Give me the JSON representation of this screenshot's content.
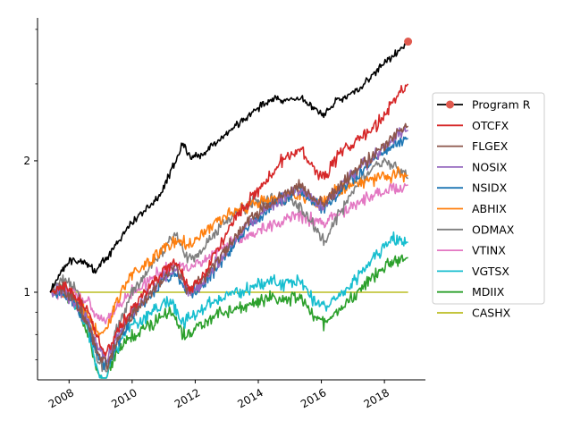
{
  "chart_data": {
    "type": "line",
    "title": "",
    "xlabel": "",
    "ylabel": "",
    "y_scale": "log",
    "xlim": [
      2007.0,
      2019.3
    ],
    "ylim": [
      0.63,
      4.25
    ],
    "grid": false,
    "legend_position": "right",
    "y_major_ticks": [
      1,
      2
    ],
    "y_major_tick_labels": [
      "1",
      "2"
    ],
    "y_minor_ticks": [
      0.7,
      0.8,
      0.9,
      3,
      4
    ],
    "x_ticks": [
      2008,
      2010,
      2012,
      2014,
      2016,
      2018
    ],
    "x_tick_labels": [
      "2008",
      "2010",
      "2012",
      "2014",
      "2016",
      "2018"
    ],
    "series": [
      {
        "name": "Program R",
        "color": "#000000",
        "marker": "circle",
        "marker_color": "#e05a4f",
        "x": [
          2007.4,
          2007.7,
          2008.0,
          2008.5,
          2008.8,
          2009.2,
          2009.6,
          2010.0,
          2010.4,
          2010.8,
          2011.2,
          2011.6,
          2011.9,
          2012.3,
          2012.8,
          2013.2,
          2013.6,
          2014.0,
          2014.5,
          2014.9,
          2015.3,
          2015.6,
          2015.9,
          2016.1,
          2016.4,
          2016.8,
          2017.2,
          2017.6,
          2018.0,
          2018.4,
          2018.75
        ],
        "y": [
          1.0,
          1.1,
          1.18,
          1.17,
          1.12,
          1.2,
          1.33,
          1.45,
          1.55,
          1.62,
          1.87,
          2.18,
          2.02,
          2.1,
          2.25,
          2.38,
          2.5,
          2.65,
          2.78,
          2.76,
          2.78,
          2.72,
          2.6,
          2.55,
          2.72,
          2.82,
          2.9,
          3.15,
          3.35,
          3.55,
          3.75
        ]
      },
      {
        "name": "OTCFX",
        "color": "#d62728",
        "x": [
          2007.4,
          2007.8,
          2008.2,
          2008.6,
          2008.9,
          2009.2,
          2009.5,
          2010.0,
          2010.5,
          2011.0,
          2011.4,
          2011.8,
          2012.2,
          2012.7,
          2013.2,
          2013.7,
          2014.2,
          2014.6,
          2015.0,
          2015.4,
          2015.8,
          2016.1,
          2016.4,
          2016.8,
          2017.2,
          2017.6,
          2018.0,
          2018.4,
          2018.75
        ],
        "y": [
          1.0,
          1.04,
          0.98,
          0.92,
          0.78,
          0.72,
          0.8,
          0.92,
          1.02,
          1.12,
          1.18,
          1.02,
          1.08,
          1.25,
          1.45,
          1.62,
          1.78,
          1.95,
          2.05,
          2.1,
          1.9,
          1.82,
          2.0,
          2.15,
          2.25,
          2.35,
          2.55,
          2.8,
          3.0
        ]
      },
      {
        "name": "FLGEX",
        "color": "#8c564b",
        "x": [
          2007.4,
          2007.8,
          2008.2,
          2008.6,
          2008.9,
          2009.2,
          2009.5,
          2010.0,
          2010.5,
          2011.0,
          2011.4,
          2011.8,
          2012.2,
          2012.7,
          2013.2,
          2013.7,
          2014.2,
          2014.6,
          2015.0,
          2015.4,
          2015.8,
          2016.1,
          2016.4,
          2016.8,
          2017.2,
          2017.6,
          2018.0,
          2018.4,
          2018.75
        ],
        "y": [
          1.0,
          1.02,
          0.95,
          0.85,
          0.72,
          0.68,
          0.76,
          0.88,
          0.98,
          1.08,
          1.14,
          1.0,
          1.06,
          1.18,
          1.32,
          1.46,
          1.56,
          1.64,
          1.7,
          1.75,
          1.64,
          1.6,
          1.7,
          1.82,
          1.94,
          2.04,
          2.18,
          2.3,
          2.4
        ]
      },
      {
        "name": "NOSIX",
        "color": "#9467bd",
        "x": [
          2007.4,
          2007.8,
          2008.2,
          2008.6,
          2008.9,
          2009.2,
          2009.5,
          2010.0,
          2010.5,
          2011.0,
          2011.4,
          2011.8,
          2012.2,
          2012.7,
          2013.2,
          2013.7,
          2014.2,
          2014.6,
          2015.0,
          2015.4,
          2015.8,
          2016.1,
          2016.4,
          2016.8,
          2017.2,
          2017.6,
          2018.0,
          2018.4,
          2018.75
        ],
        "y": [
          1.0,
          1.01,
          0.95,
          0.86,
          0.74,
          0.7,
          0.78,
          0.9,
          0.99,
          1.08,
          1.13,
          1.0,
          1.05,
          1.17,
          1.3,
          1.44,
          1.54,
          1.62,
          1.68,
          1.72,
          1.62,
          1.58,
          1.68,
          1.8,
          1.92,
          2.02,
          2.15,
          2.28,
          2.35
        ]
      },
      {
        "name": "NSIDX",
        "color": "#1f77b4",
        "x": [
          2007.4,
          2007.8,
          2008.2,
          2008.6,
          2008.9,
          2009.2,
          2009.5,
          2010.0,
          2010.5,
          2011.0,
          2011.4,
          2011.8,
          2012.2,
          2012.7,
          2013.2,
          2013.7,
          2014.2,
          2014.6,
          2015.0,
          2015.4,
          2015.8,
          2016.1,
          2016.4,
          2016.8,
          2017.2,
          2017.6,
          2018.0,
          2018.4,
          2018.75
        ],
        "y": [
          1.0,
          1.0,
          0.94,
          0.84,
          0.72,
          0.68,
          0.76,
          0.88,
          0.97,
          1.06,
          1.11,
          0.98,
          1.03,
          1.15,
          1.28,
          1.42,
          1.52,
          1.6,
          1.66,
          1.7,
          1.6,
          1.55,
          1.65,
          1.77,
          1.88,
          1.98,
          2.1,
          2.2,
          2.25
        ]
      },
      {
        "name": "ABHIX",
        "color": "#ff7f0e",
        "x": [
          2007.4,
          2007.8,
          2008.2,
          2008.6,
          2008.9,
          2009.2,
          2009.5,
          2010.0,
          2010.5,
          2011.0,
          2011.4,
          2011.8,
          2012.2,
          2012.7,
          2013.2,
          2013.7,
          2014.2,
          2014.6,
          2015.0,
          2015.4,
          2015.8,
          2016.1,
          2016.4,
          2016.8,
          2017.2,
          2017.6,
          2018.0,
          2018.4,
          2018.75
        ],
        "y": [
          1.0,
          1.0,
          0.95,
          0.88,
          0.8,
          0.82,
          0.95,
          1.1,
          1.18,
          1.25,
          1.32,
          1.28,
          1.35,
          1.45,
          1.52,
          1.57,
          1.62,
          1.65,
          1.68,
          1.66,
          1.6,
          1.62,
          1.7,
          1.74,
          1.78,
          1.82,
          1.84,
          1.86,
          1.85
        ]
      },
      {
        "name": "ODMAX",
        "color": "#7f7f7f",
        "x": [
          2007.4,
          2007.8,
          2008.2,
          2008.6,
          2008.9,
          2009.2,
          2009.5,
          2010.0,
          2010.5,
          2011.0,
          2011.4,
          2011.8,
          2012.2,
          2012.7,
          2013.2,
          2013.7,
          2014.2,
          2014.6,
          2015.0,
          2015.4,
          2015.8,
          2016.1,
          2016.4,
          2016.8,
          2017.2,
          2017.6,
          2018.0,
          2018.4,
          2018.75
        ],
        "y": [
          1.0,
          1.08,
          1.02,
          0.88,
          0.7,
          0.66,
          0.82,
          1.0,
          1.12,
          1.25,
          1.35,
          1.18,
          1.25,
          1.4,
          1.52,
          1.58,
          1.62,
          1.64,
          1.62,
          1.55,
          1.4,
          1.3,
          1.45,
          1.6,
          1.78,
          1.92,
          2.0,
          1.9,
          1.82
        ]
      },
      {
        "name": "VTINX",
        "color": "#e377c2",
        "x": [
          2007.4,
          2007.8,
          2008.2,
          2008.6,
          2008.9,
          2009.2,
          2009.5,
          2010.0,
          2010.5,
          2011.0,
          2011.4,
          2011.8,
          2012.2,
          2012.7,
          2013.2,
          2013.7,
          2014.2,
          2014.6,
          2015.0,
          2015.4,
          2015.8,
          2016.1,
          2016.4,
          2016.8,
          2017.2,
          2017.6,
          2018.0,
          2018.4,
          2018.75
        ],
        "y": [
          1.0,
          1.01,
          0.99,
          0.95,
          0.88,
          0.86,
          0.92,
          1.0,
          1.06,
          1.12,
          1.16,
          1.14,
          1.18,
          1.24,
          1.3,
          1.35,
          1.4,
          1.44,
          1.47,
          1.5,
          1.46,
          1.44,
          1.5,
          1.55,
          1.6,
          1.66,
          1.7,
          1.74,
          1.76
        ]
      },
      {
        "name": "VGTSX",
        "color": "#17becf",
        "x": [
          2007.4,
          2007.8,
          2008.2,
          2008.6,
          2008.9,
          2009.1,
          2009.4,
          2009.8,
          2010.3,
          2010.8,
          2011.2,
          2011.6,
          2011.9,
          2012.4,
          2012.9,
          2013.4,
          2013.9,
          2014.4,
          2014.8,
          2015.3,
          2015.8,
          2016.1,
          2016.5,
          2017.0,
          2017.5,
          2018.0,
          2018.3,
          2018.75
        ],
        "y": [
          1.0,
          1.03,
          0.95,
          0.82,
          0.66,
          0.62,
          0.72,
          0.82,
          0.86,
          0.92,
          0.96,
          0.86,
          0.88,
          0.94,
          0.98,
          1.0,
          1.04,
          1.06,
          1.04,
          1.06,
          0.96,
          0.92,
          0.98,
          1.06,
          1.16,
          1.28,
          1.32,
          1.3
        ]
      },
      {
        "name": "MDIIX",
        "color": "#2ca02c",
        "x": [
          2007.4,
          2007.8,
          2008.2,
          2008.6,
          2008.9,
          2009.1,
          2009.4,
          2009.8,
          2010.3,
          2010.8,
          2011.2,
          2011.6,
          2011.9,
          2012.4,
          2012.9,
          2013.4,
          2013.9,
          2014.4,
          2014.8,
          2015.3,
          2015.8,
          2016.1,
          2016.5,
          2017.0,
          2017.5,
          2018.0,
          2018.3,
          2018.75
        ],
        "y": [
          1.0,
          1.01,
          0.93,
          0.8,
          0.66,
          0.61,
          0.7,
          0.78,
          0.82,
          0.86,
          0.9,
          0.8,
          0.82,
          0.86,
          0.9,
          0.92,
          0.95,
          0.98,
          0.96,
          0.98,
          0.88,
          0.85,
          0.9,
          0.98,
          1.06,
          1.14,
          1.18,
          1.2
        ]
      },
      {
        "name": "CASHX",
        "color": "#bcbd22",
        "x": [
          2007.4,
          2018.75
        ],
        "y": [
          1.0,
          1.0
        ]
      }
    ]
  }
}
